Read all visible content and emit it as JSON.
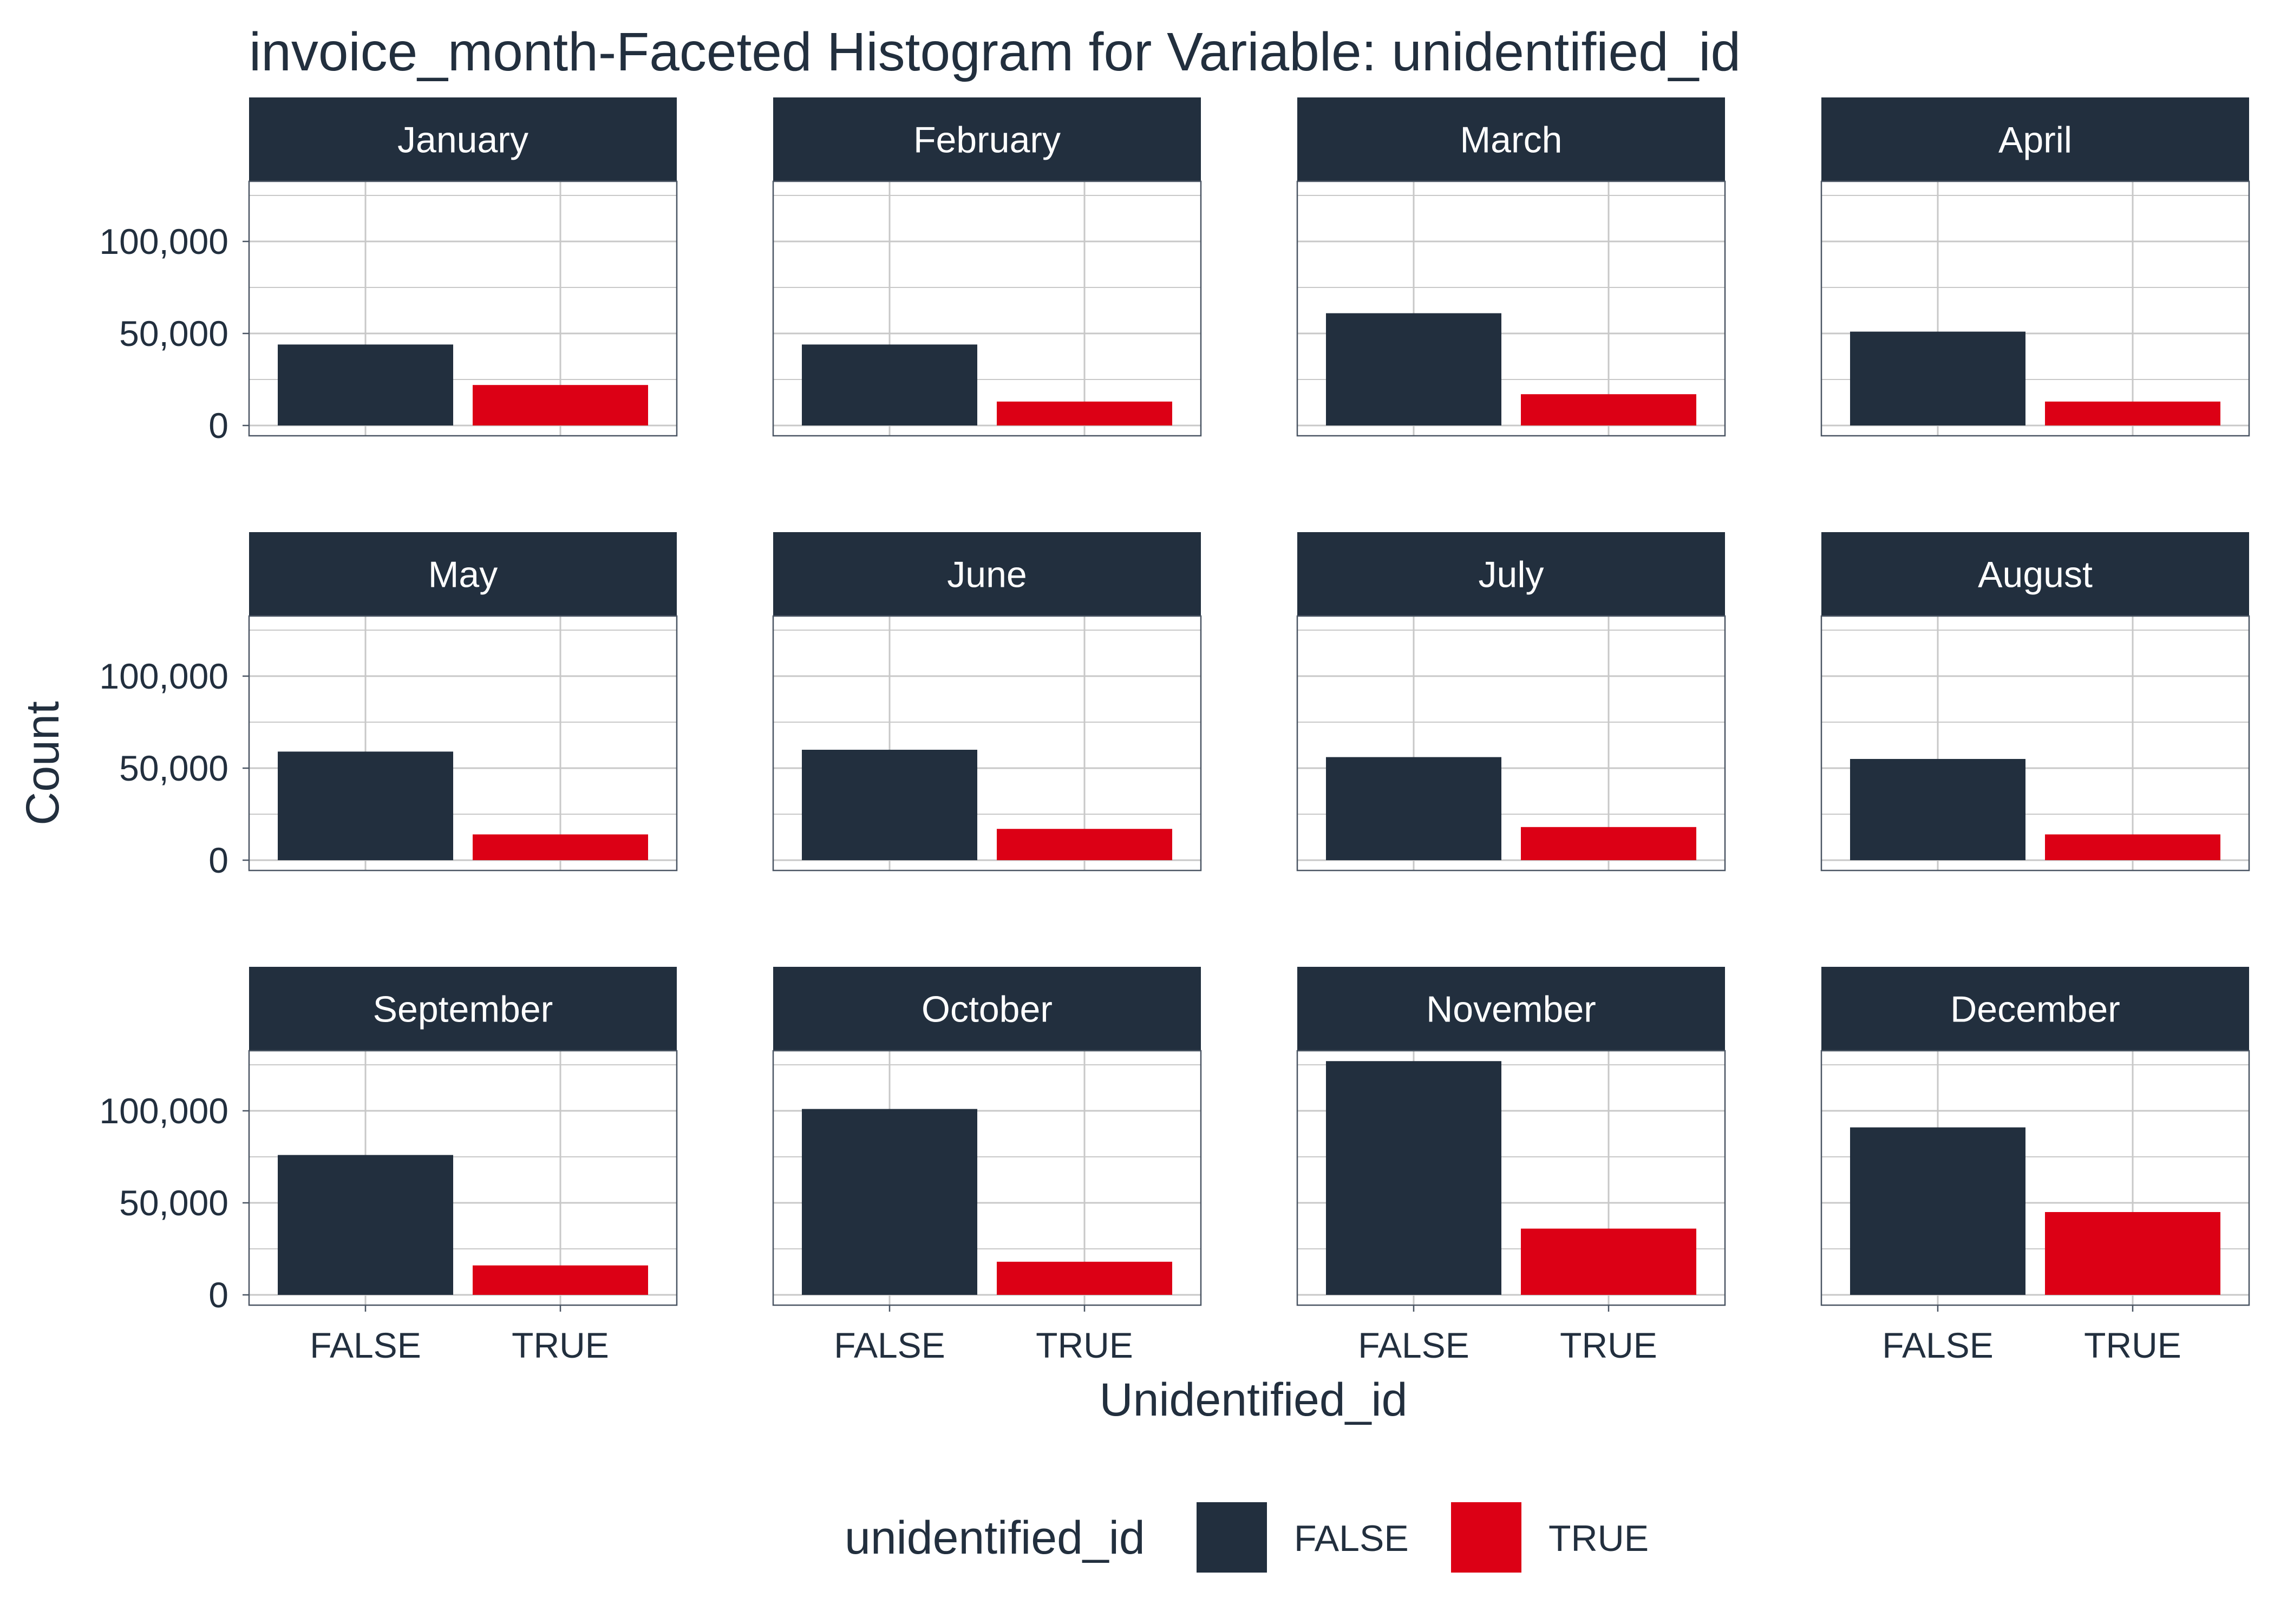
{
  "chart_data": {
    "type": "bar",
    "title": "invoice_month-Faceted Histogram for Variable: unidentified_id",
    "xlabel": "Unidentified_id",
    "ylabel": "Count",
    "categories": [
      "FALSE",
      "TRUE"
    ],
    "ylim": [
      0,
      130000
    ],
    "yticks": [
      0,
      50000,
      100000
    ],
    "ytick_labels": [
      "0",
      "50,000",
      "100,000"
    ],
    "grid": true,
    "legend": {
      "title": "unidentified_id",
      "position": "bottom",
      "entries": [
        {
          "label": "FALSE",
          "color": "#222f3e"
        },
        {
          "label": "TRUE",
          "color": "#dc0015"
        }
      ]
    },
    "colors": {
      "FALSE": "#222f3e",
      "TRUE": "#dc0015"
    },
    "facets": [
      {
        "name": "January",
        "values": [
          44000,
          22000
        ]
      },
      {
        "name": "February",
        "values": [
          44000,
          13000
        ]
      },
      {
        "name": "March",
        "values": [
          61000,
          17000
        ]
      },
      {
        "name": "April",
        "values": [
          51000,
          13000
        ]
      },
      {
        "name": "May",
        "values": [
          59000,
          14000
        ]
      },
      {
        "name": "June",
        "values": [
          60000,
          17000
        ]
      },
      {
        "name": "July",
        "values": [
          56000,
          18000
        ]
      },
      {
        "name": "August",
        "values": [
          55000,
          14000
        ]
      },
      {
        "name": "September",
        "values": [
          76000,
          16000
        ]
      },
      {
        "name": "October",
        "values": [
          101000,
          18000
        ]
      },
      {
        "name": "November",
        "values": [
          127000,
          36000
        ]
      },
      {
        "name": "December",
        "values": [
          91000,
          45000
        ]
      }
    ]
  }
}
